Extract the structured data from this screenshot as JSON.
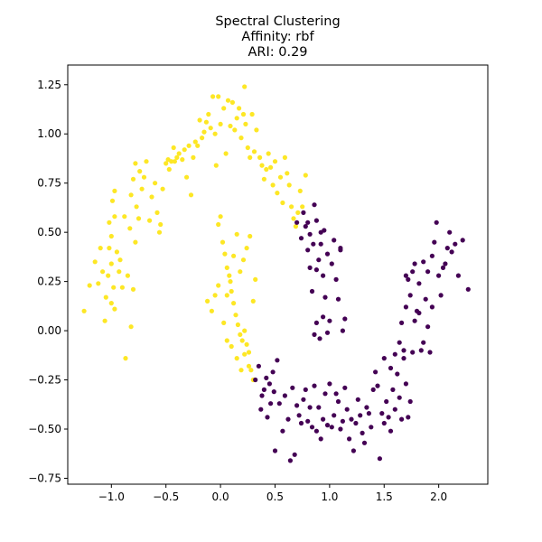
{
  "chart_data": {
    "type": "scatter",
    "title_lines": [
      "Spectral Clustering",
      "Affinity: rbf",
      "ARI: 0.29"
    ],
    "xlabel": "",
    "ylabel": "",
    "xlim": [
      -1.4,
      2.45
    ],
    "ylim": [
      -0.78,
      1.35
    ],
    "x_ticks": [
      -1.0,
      -0.5,
      0.0,
      0.5,
      1.0,
      1.5,
      2.0
    ],
    "x_tick_labels": [
      "−1.0",
      "−0.5",
      "0.0",
      "0.5",
      "1.0",
      "1.5",
      "2.0"
    ],
    "y_ticks": [
      -0.75,
      -0.5,
      -0.25,
      0.0,
      0.25,
      0.5,
      0.75,
      1.0,
      1.25
    ],
    "y_tick_labels": [
      "−0.75",
      "−0.50",
      "−0.25",
      "0.00",
      "0.25",
      "0.50",
      "0.75",
      "1.00",
      "1.25"
    ],
    "grid": false,
    "legend": "none",
    "series": [
      {
        "color": "#fde725",
        "points": [
          [
            -1.25,
            0.1
          ],
          [
            -1.2,
            0.23
          ],
          [
            -1.15,
            0.35
          ],
          [
            -1.12,
            0.24
          ],
          [
            -1.1,
            0.42
          ],
          [
            -1.08,
            0.3
          ],
          [
            -1.06,
            0.05
          ],
          [
            -1.05,
            0.17
          ],
          [
            -1.03,
            0.28
          ],
          [
            -1.02,
            0.42
          ],
          [
            -1.0,
            0.34
          ],
          [
            -1.0,
            0.14
          ],
          [
            -0.98,
            0.22
          ],
          [
            -0.97,
            0.11
          ],
          [
            -0.95,
            0.4
          ],
          [
            -0.93,
            0.3
          ],
          [
            -0.92,
            0.36
          ],
          [
            -0.9,
            0.22
          ],
          [
            -0.88,
            0.58
          ],
          [
            -0.87,
            -0.14
          ],
          [
            -0.85,
            0.28
          ],
          [
            -0.83,
            0.52
          ],
          [
            -0.82,
            0.02
          ],
          [
            -0.8,
            0.21
          ],
          [
            -0.78,
            0.45
          ],
          [
            -0.77,
            0.63
          ],
          [
            -0.75,
            0.57
          ],
          [
            -1.02,
            0.55
          ],
          [
            -1.0,
            0.48
          ],
          [
            -0.97,
            0.58
          ],
          [
            -0.99,
            0.66
          ],
          [
            -0.97,
            0.71
          ],
          [
            -0.82,
            0.69
          ],
          [
            -0.8,
            0.77
          ],
          [
            -0.78,
            0.85
          ],
          [
            -0.74,
            0.81
          ],
          [
            -0.72,
            0.72
          ],
          [
            -0.7,
            0.78
          ],
          [
            -0.68,
            0.86
          ],
          [
            -0.65,
            0.56
          ],
          [
            -0.63,
            0.68
          ],
          [
            -0.6,
            0.75
          ],
          [
            -0.58,
            0.6
          ],
          [
            -0.56,
            0.5
          ],
          [
            -0.55,
            0.54
          ],
          [
            -0.53,
            0.72
          ],
          [
            -0.5,
            0.85
          ],
          [
            -0.48,
            0.87
          ],
          [
            -0.47,
            0.82
          ],
          [
            -0.45,
            0.86
          ],
          [
            -0.43,
            0.93
          ],
          [
            -0.42,
            0.86
          ],
          [
            -0.4,
            0.88
          ],
          [
            -0.38,
            0.9
          ],
          [
            -0.35,
            0.87
          ],
          [
            -0.33,
            0.92
          ],
          [
            -0.31,
            0.78
          ],
          [
            -0.29,
            0.94
          ],
          [
            -0.27,
            0.69
          ],
          [
            -0.25,
            0.88
          ],
          [
            -0.23,
            0.96
          ],
          [
            -0.21,
            0.94
          ],
          [
            -0.19,
            1.07
          ],
          [
            -0.17,
            0.98
          ],
          [
            -0.15,
            1.01
          ],
          [
            -0.13,
            1.06
          ],
          [
            -0.11,
            1.1
          ],
          [
            -0.09,
            1.03
          ],
          [
            -0.07,
            1.19
          ],
          [
            -0.05,
            1.0
          ],
          [
            -0.04,
            0.84
          ],
          [
            -0.02,
            1.19
          ],
          [
            0.0,
            1.05
          ],
          [
            0.03,
            1.13
          ],
          [
            0.05,
            0.9
          ],
          [
            0.07,
            1.17
          ],
          [
            0.09,
            1.04
          ],
          [
            0.11,
            1.16
          ],
          [
            0.13,
            1.02
          ],
          [
            0.15,
            1.08
          ],
          [
            0.17,
            1.13
          ],
          [
            0.19,
            0.98
          ],
          [
            0.21,
            1.1
          ],
          [
            0.23,
            1.05
          ],
          [
            0.25,
            0.93
          ],
          [
            0.22,
            1.24
          ],
          [
            0.27,
            0.88
          ],
          [
            0.29,
            1.1
          ],
          [
            0.31,
            0.91
          ],
          [
            0.33,
            1.02
          ],
          [
            0.36,
            0.88
          ],
          [
            0.38,
            0.84
          ],
          [
            0.4,
            0.77
          ],
          [
            0.42,
            0.82
          ],
          [
            0.44,
            0.9
          ],
          [
            0.46,
            0.83
          ],
          [
            0.48,
            0.74
          ],
          [
            0.5,
            0.86
          ],
          [
            0.52,
            0.7
          ],
          [
            0.55,
            0.78
          ],
          [
            0.57,
            0.65
          ],
          [
            0.59,
            0.88
          ],
          [
            0.61,
            0.8
          ],
          [
            0.63,
            0.74
          ],
          [
            0.65,
            0.63
          ],
          [
            0.67,
            0.57
          ],
          [
            0.69,
            0.53
          ],
          [
            0.71,
            0.6
          ],
          [
            0.73,
            0.71
          ],
          [
            0.75,
            0.63
          ],
          [
            0.78,
            0.79
          ],
          [
            -0.02,
            0.54
          ],
          [
            0.0,
            0.58
          ],
          [
            0.02,
            0.45
          ],
          [
            0.04,
            0.39
          ],
          [
            0.06,
            0.32
          ],
          [
            0.08,
            0.28
          ],
          [
            0.1,
            0.2
          ],
          [
            0.12,
            0.14
          ],
          [
            0.14,
            0.08
          ],
          [
            0.16,
            0.03
          ],
          [
            0.18,
            -0.02
          ],
          [
            0.2,
            -0.05
          ],
          [
            0.22,
            0.0
          ],
          [
            0.24,
            -0.07
          ],
          [
            0.26,
            -0.11
          ],
          [
            0.28,
            -0.2
          ],
          [
            0.3,
            -0.25
          ],
          [
            0.27,
            0.48
          ],
          [
            0.24,
            0.42
          ],
          [
            0.21,
            0.36
          ],
          [
            0.18,
            0.3
          ],
          [
            0.15,
            0.49
          ],
          [
            0.12,
            0.38
          ],
          [
            0.09,
            0.25
          ],
          [
            0.06,
            0.18
          ],
          [
            -0.02,
            0.23
          ],
          [
            -0.05,
            0.18
          ],
          [
            -0.08,
            0.1
          ],
          [
            -0.12,
            0.15
          ],
          [
            0.03,
            0.04
          ],
          [
            0.06,
            -0.05
          ],
          [
            0.1,
            -0.08
          ],
          [
            0.15,
            -0.14
          ],
          [
            0.19,
            -0.2
          ],
          [
            0.22,
            -0.12
          ],
          [
            0.26,
            -0.18
          ],
          [
            0.3,
            0.15
          ],
          [
            0.32,
            0.26
          ]
        ]
      },
      {
        "color": "#440154",
        "points": [
          [
            0.32,
            -0.25
          ],
          [
            0.35,
            -0.18
          ],
          [
            0.37,
            -0.4
          ],
          [
            0.38,
            -0.33
          ],
          [
            0.4,
            -0.3
          ],
          [
            0.42,
            -0.24
          ],
          [
            0.43,
            -0.44
          ],
          [
            0.45,
            -0.27
          ],
          [
            0.46,
            -0.37
          ],
          [
            0.48,
            -0.21
          ],
          [
            0.49,
            -0.31
          ],
          [
            0.5,
            -0.61
          ],
          [
            0.52,
            -0.15
          ],
          [
            0.54,
            -0.37
          ],
          [
            0.57,
            -0.51
          ],
          [
            0.59,
            -0.33
          ],
          [
            0.62,
            -0.45
          ],
          [
            0.64,
            -0.66
          ],
          [
            0.66,
            -0.29
          ],
          [
            0.68,
            -0.63
          ],
          [
            0.7,
            -0.38
          ],
          [
            0.72,
            -0.43
          ],
          [
            0.74,
            -0.47
          ],
          [
            0.76,
            -0.35
          ],
          [
            0.78,
            -0.3
          ],
          [
            0.8,
            -0.46
          ],
          [
            0.82,
            -0.39
          ],
          [
            0.84,
            -0.49
          ],
          [
            0.86,
            -0.28
          ],
          [
            0.88,
            -0.51
          ],
          [
            0.9,
            -0.39
          ],
          [
            0.92,
            -0.55
          ],
          [
            0.94,
            -0.45
          ],
          [
            0.96,
            -0.32
          ],
          [
            0.98,
            -0.48
          ],
          [
            1.0,
            -0.27
          ],
          [
            1.02,
            -0.49
          ],
          [
            1.04,
            -0.43
          ],
          [
            1.06,
            -0.32
          ],
          [
            1.08,
            -0.36
          ],
          [
            1.1,
            -0.5
          ],
          [
            1.12,
            -0.46
          ],
          [
            1.14,
            -0.29
          ],
          [
            1.16,
            -0.4
          ],
          [
            1.18,
            -0.55
          ],
          [
            1.2,
            -0.45
          ],
          [
            1.22,
            -0.61
          ],
          [
            1.24,
            -0.47
          ],
          [
            1.26,
            -0.35
          ],
          [
            1.28,
            -0.43
          ],
          [
            1.3,
            -0.52
          ],
          [
            1.32,
            -0.57
          ],
          [
            1.34,
            -0.39
          ],
          [
            1.36,
            -0.42
          ],
          [
            1.38,
            -0.49
          ],
          [
            1.4,
            -0.3
          ],
          [
            1.42,
            -0.21
          ],
          [
            1.44,
            -0.28
          ],
          [
            1.46,
            -0.65
          ],
          [
            1.48,
            -0.42
          ],
          [
            1.5,
            -0.47
          ],
          [
            1.52,
            -0.36
          ],
          [
            1.54,
            -0.44
          ],
          [
            1.56,
            -0.51
          ],
          [
            1.58,
            -0.3
          ],
          [
            1.6,
            -0.4
          ],
          [
            1.62,
            -0.22
          ],
          [
            1.64,
            -0.34
          ],
          [
            1.66,
            -0.45
          ],
          [
            1.68,
            -0.14
          ],
          [
            1.7,
            -0.27
          ],
          [
            1.72,
            -0.44
          ],
          [
            1.74,
            -0.36
          ],
          [
            1.76,
            -0.11
          ],
          [
            1.5,
            -0.14
          ],
          [
            1.56,
            -0.19
          ],
          [
            1.6,
            -0.12
          ],
          [
            1.64,
            -0.06
          ],
          [
            1.66,
            0.04
          ],
          [
            1.68,
            -0.1
          ],
          [
            1.7,
            0.12
          ],
          [
            1.72,
            0.26
          ],
          [
            1.74,
            0.18
          ],
          [
            1.76,
            0.3
          ],
          [
            1.78,
            0.05
          ],
          [
            1.8,
            0.1
          ],
          [
            1.82,
            0.24
          ],
          [
            1.84,
            -0.1
          ],
          [
            1.86,
            0.35
          ],
          [
            1.88,
            0.16
          ],
          [
            1.9,
            0.3
          ],
          [
            1.92,
            -0.11
          ],
          [
            1.94,
            0.38
          ],
          [
            1.96,
            0.45
          ],
          [
            1.98,
            0.55
          ],
          [
            2.0,
            0.28
          ],
          [
            2.02,
            0.18
          ],
          [
            2.04,
            0.32
          ],
          [
            2.06,
            0.34
          ],
          [
            2.08,
            0.42
          ],
          [
            2.1,
            0.5
          ],
          [
            2.12,
            0.4
          ],
          [
            2.15,
            0.44
          ],
          [
            2.18,
            0.28
          ],
          [
            2.22,
            0.46
          ],
          [
            2.27,
            0.21
          ],
          [
            1.7,
            0.28
          ],
          [
            1.78,
            0.34
          ],
          [
            1.82,
            0.09
          ],
          [
            1.86,
            -0.06
          ],
          [
            1.9,
            0.02
          ],
          [
            1.94,
            0.12
          ],
          [
            0.76,
            0.6
          ],
          [
            0.78,
            0.53
          ],
          [
            0.8,
            0.41
          ],
          [
            0.82,
            0.32
          ],
          [
            0.84,
            0.2
          ],
          [
            0.85,
            0.44
          ],
          [
            0.86,
            0.64
          ],
          [
            0.88,
            0.56
          ],
          [
            0.9,
            0.36
          ],
          [
            0.92,
            0.5
          ],
          [
            0.94,
            0.28
          ],
          [
            0.96,
            0.17
          ],
          [
            0.98,
            0.39
          ],
          [
            1.0,
            0.05
          ],
          [
            1.02,
            0.34
          ],
          [
            1.04,
            0.46
          ],
          [
            1.06,
            0.26
          ],
          [
            1.08,
            0.16
          ],
          [
            1.1,
            0.41
          ],
          [
            1.12,
            0.0
          ],
          [
            1.14,
            0.06
          ],
          [
            0.88,
            0.04
          ],
          [
            0.94,
            0.07
          ],
          [
            0.91,
            -0.04
          ],
          [
            0.86,
            -0.02
          ],
          [
            0.98,
            -0.01
          ],
          [
            1.1,
            0.42
          ],
          [
            0.95,
            0.51
          ],
          [
            0.82,
            0.49
          ],
          [
            0.88,
            0.31
          ],
          [
            0.92,
            0.44
          ],
          [
            0.8,
            0.55
          ],
          [
            0.74,
            0.47
          ],
          [
            0.7,
            0.55
          ]
        ]
      }
    ]
  }
}
